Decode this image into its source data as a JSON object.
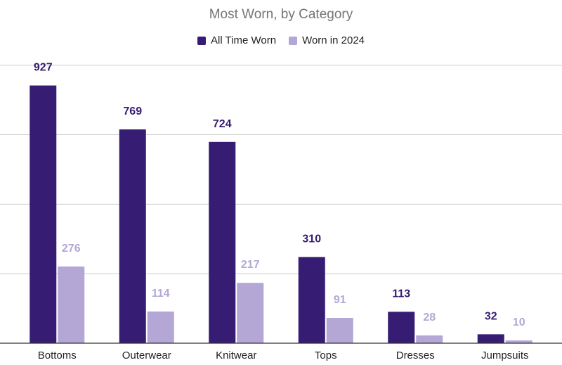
{
  "colors": {
    "all_time": "#361c72",
    "worn_2024": "#b4a7d6",
    "gridline": "#cccccc",
    "axis": "#333333"
  },
  "chart_data": {
    "type": "bar",
    "title": "Most Worn, by Category",
    "xlabel": "",
    "ylabel": "",
    "ylim": [
      0,
      1000
    ],
    "grid": true,
    "legend": "top",
    "categories": [
      "Bottoms",
      "Outerwear",
      "Knitwear",
      "Tops",
      "Dresses",
      "Jumpsuits"
    ],
    "series": [
      {
        "name": "All Time Worn",
        "values": [
          927,
          769,
          724,
          310,
          113,
          32
        ]
      },
      {
        "name": "Worn in 2024",
        "values": [
          276,
          114,
          217,
          91,
          28,
          10
        ]
      }
    ]
  }
}
